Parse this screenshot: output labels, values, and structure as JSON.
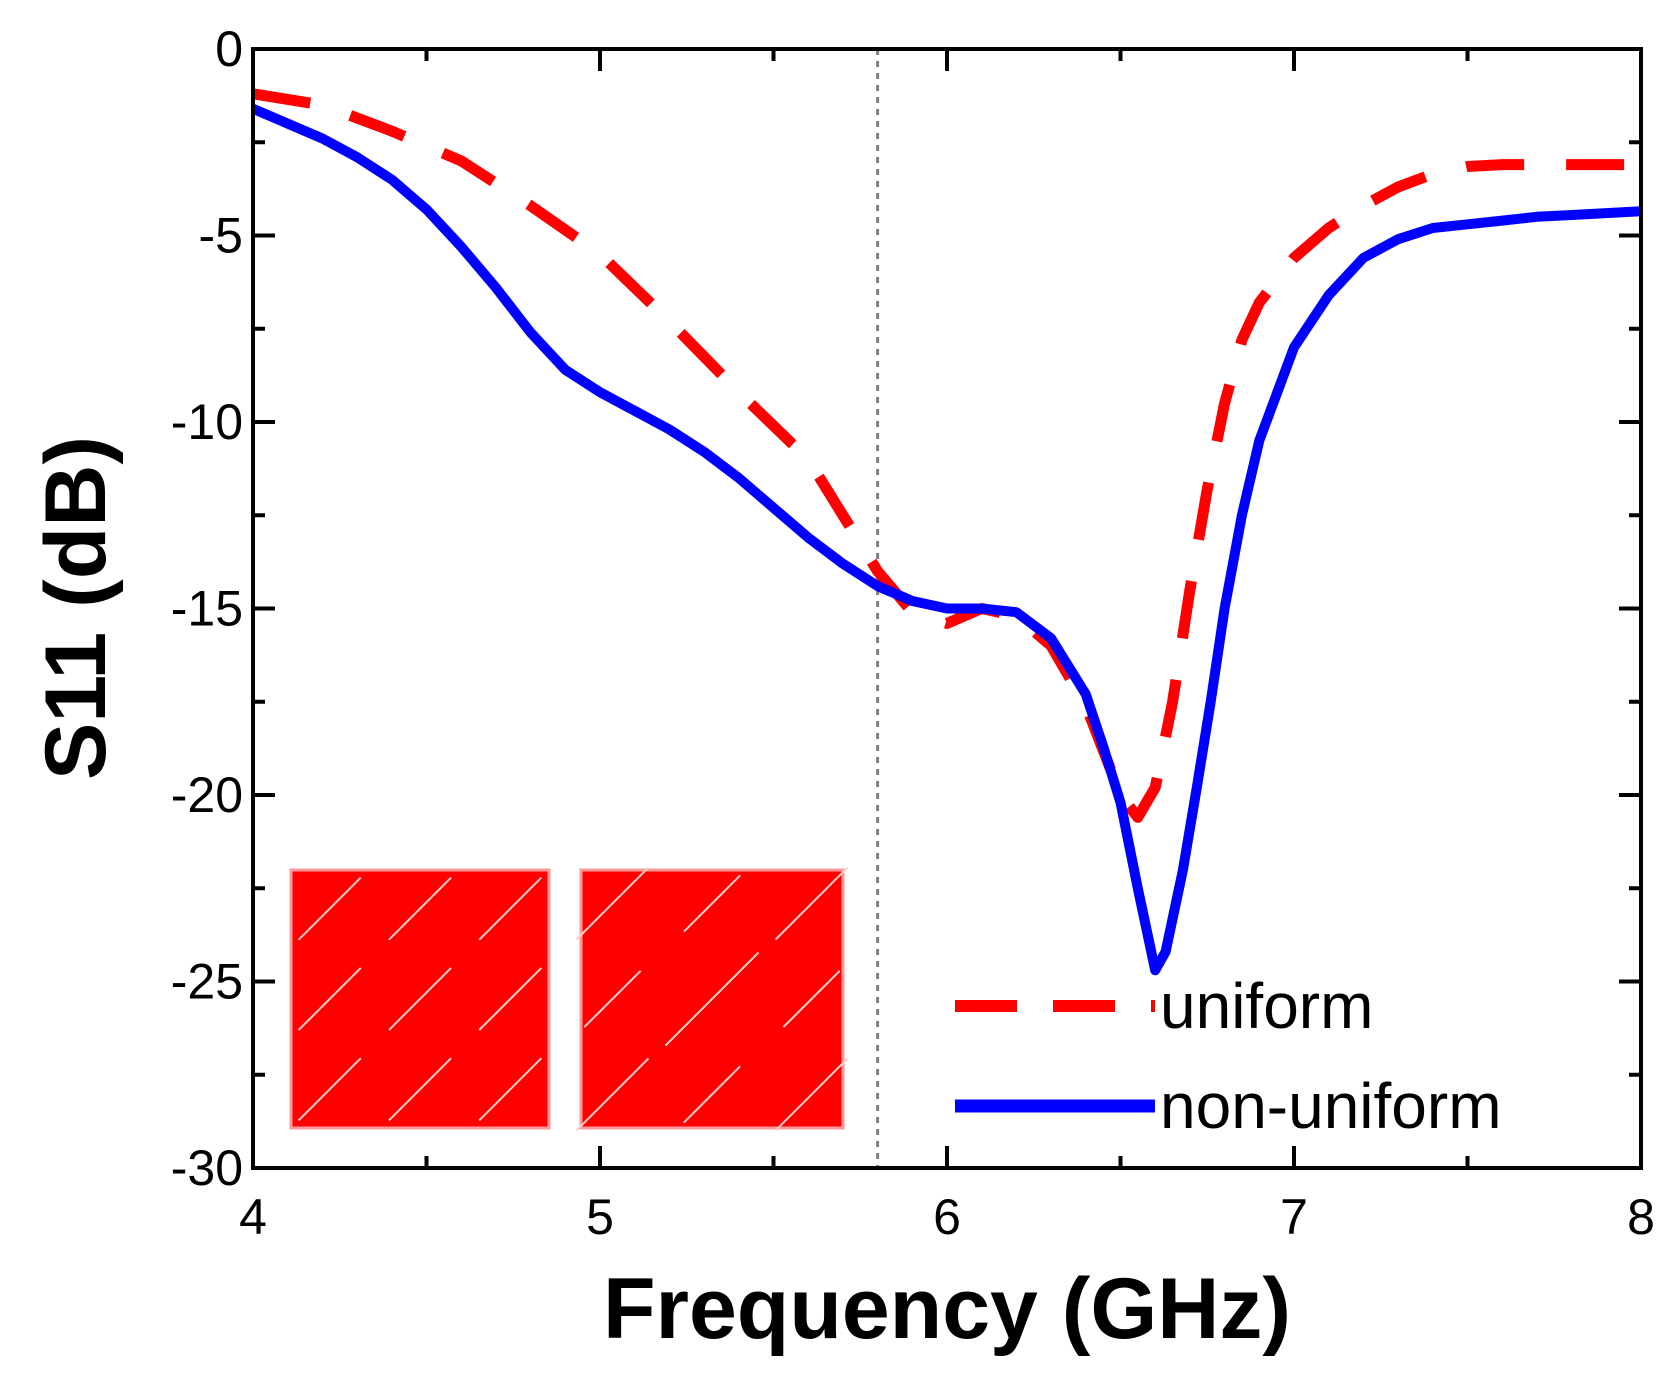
{
  "chart_data": {
    "type": "line",
    "title": "",
    "xlabel": "Frequency (GHz)",
    "ylabel": "S11 (dB)",
    "xlim": [
      4,
      8
    ],
    "ylim": [
      -30,
      0
    ],
    "xticks": [
      4,
      5,
      6,
      7,
      8
    ],
    "yticks": [
      0,
      -5,
      -10,
      -15,
      -20,
      -25,
      -30
    ],
    "x_tick_labels": [
      "4",
      "5",
      "6",
      "7",
      "8"
    ],
    "y_tick_labels": [
      "0",
      "-5",
      "-10",
      "-15",
      "-20",
      "-25",
      "-30"
    ],
    "reference_line": {
      "x": 5.8,
      "style": "dotted",
      "color": "#808080"
    },
    "legend_position": "bottom-right",
    "series": [
      {
        "name": "uniform",
        "color": "#ff0000",
        "style": "dashed",
        "x": [
          4.0,
          4.2,
          4.4,
          4.6,
          4.8,
          5.0,
          5.2,
          5.4,
          5.6,
          5.7,
          5.8,
          5.9,
          6.0,
          6.1,
          6.2,
          6.3,
          6.4,
          6.45,
          6.5,
          6.55,
          6.6,
          6.65,
          6.7,
          6.75,
          6.8,
          6.85,
          6.9,
          7.0,
          7.1,
          7.2,
          7.3,
          7.4,
          7.5,
          7.6,
          7.8,
          8.0
        ],
        "values": [
          -1.2,
          -1.5,
          -2.2,
          -3.0,
          -4.2,
          -5.5,
          -7.3,
          -9.2,
          -11.0,
          -12.5,
          -14.0,
          -15.1,
          -15.4,
          -15.0,
          -15.2,
          -16.0,
          -17.6,
          -18.8,
          -20.0,
          -20.6,
          -19.8,
          -17.5,
          -14.5,
          -11.8,
          -9.5,
          -7.8,
          -6.8,
          -5.6,
          -4.8,
          -4.2,
          -3.7,
          -3.35,
          -3.15,
          -3.1,
          -3.1,
          -3.1
        ]
      },
      {
        "name": "non-uniform",
        "color": "#0000ff",
        "style": "solid",
        "x": [
          4.0,
          4.1,
          4.2,
          4.3,
          4.4,
          4.5,
          4.6,
          4.7,
          4.8,
          4.9,
          5.0,
          5.1,
          5.2,
          5.3,
          5.4,
          5.5,
          5.6,
          5.7,
          5.8,
          5.9,
          6.0,
          6.1,
          6.2,
          6.3,
          6.4,
          6.45,
          6.5,
          6.55,
          6.6,
          6.63,
          6.68,
          6.72,
          6.76,
          6.8,
          6.85,
          6.9,
          7.0,
          7.1,
          7.2,
          7.3,
          7.4,
          7.5,
          7.6,
          7.7,
          7.8,
          8.0
        ],
        "values": [
          -1.6,
          -2.0,
          -2.4,
          -2.9,
          -3.5,
          -4.3,
          -5.3,
          -6.4,
          -7.6,
          -8.6,
          -9.2,
          -9.7,
          -10.2,
          -10.8,
          -11.5,
          -12.3,
          -13.1,
          -13.8,
          -14.4,
          -14.8,
          -15.0,
          -15.0,
          -15.1,
          -15.8,
          -17.3,
          -18.7,
          -20.2,
          -22.5,
          -24.7,
          -24.2,
          -22.0,
          -19.8,
          -17.5,
          -15.0,
          -12.5,
          -10.5,
          -8.0,
          -6.6,
          -5.6,
          -5.1,
          -4.8,
          -4.7,
          -4.6,
          -4.5,
          -4.45,
          -4.35
        ]
      }
    ]
  }
}
